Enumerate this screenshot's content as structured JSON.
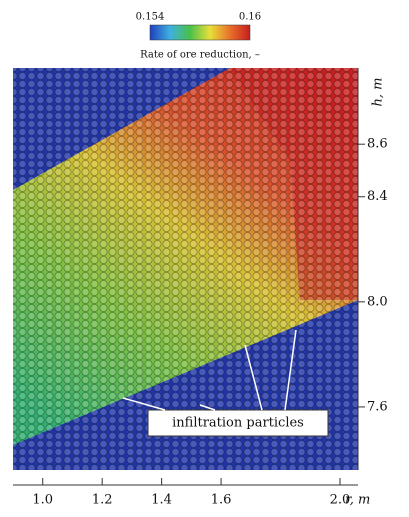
{
  "chart_data": {
    "type": "particle-map",
    "colorbar": {
      "label": "Rate of ore reduction, –",
      "lim": [
        0.154,
        0.16
      ],
      "ticks": [
        0.154,
        0.16
      ],
      "colors": [
        "#1f3fbf",
        "#3fb0e0",
        "#49c04a",
        "#e8e03a",
        "#e8702a",
        "#c81e1e"
      ]
    },
    "xlabel": "r, m",
    "ylabel": "h, m",
    "xlim": [
      0.9,
      2.0
    ],
    "xticks": [
      {
        "value": 1,
        "label": "1.0"
      },
      1.2,
      1.4,
      1.6,
      {
        "value": 2,
        "label": "2.0"
      }
    ],
    "ylim": [
      7.36,
      8.89
    ],
    "yticks": [
      7.6,
      {
        "value": 8,
        "label": "8.0"
      },
      8.4,
      8.6
    ],
    "annotation": "infiltration particles"
  }
}
